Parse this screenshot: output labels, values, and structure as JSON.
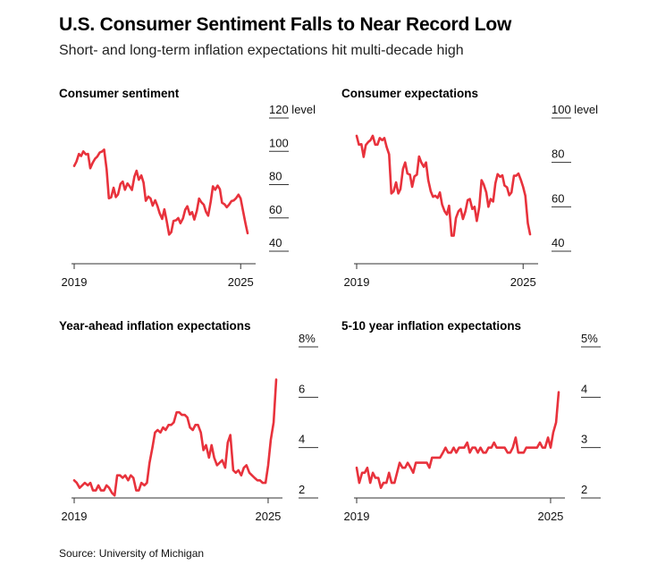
{
  "header": {
    "title": "U.S. Consumer Sentiment Falls to Near Record Low",
    "subtitle": "Short- and long-term inflation expectations hit multi-decade high"
  },
  "footer": {
    "source": "Source: University of Michigan"
  },
  "colors": {
    "line": "#e8323c",
    "axis": "#333333",
    "text": "#111111"
  },
  "chart_data": [
    {
      "type": "line",
      "title": "Consumer sentiment",
      "xlim": [
        2019.0,
        2025.25
      ],
      "ylim": [
        40,
        120
      ],
      "x_ticks": [
        {
          "v": 2019,
          "label": "2019"
        },
        {
          "v": 2025,
          "label": "2025"
        }
      ],
      "y_ticks": [
        {
          "v": 120,
          "label": "120 level"
        },
        {
          "v": 100,
          "label": "100"
        },
        {
          "v": 80,
          "label": "80"
        },
        {
          "v": 60,
          "label": "60"
        },
        {
          "v": 40,
          "label": "40"
        }
      ],
      "series": [
        {
          "x": [
            2019.0,
            2019.08,
            2019.17,
            2019.25,
            2019.33,
            2019.42,
            2019.5,
            2019.58,
            2019.67,
            2019.75,
            2019.83,
            2019.92,
            2020.0,
            2020.08,
            2020.17,
            2020.25,
            2020.33,
            2020.42,
            2020.5,
            2020.58,
            2020.67,
            2020.75,
            2020.83,
            2020.92,
            2021.0,
            2021.08,
            2021.17,
            2021.25,
            2021.33,
            2021.42,
            2021.5,
            2021.58,
            2021.67,
            2021.75,
            2021.83,
            2021.92,
            2022.0,
            2022.08,
            2022.17,
            2022.25,
            2022.33,
            2022.42,
            2022.5,
            2022.58,
            2022.67,
            2022.75,
            2022.83,
            2022.92,
            2023.0,
            2023.08,
            2023.17,
            2023.25,
            2023.33,
            2023.42,
            2023.5,
            2023.58,
            2023.67,
            2023.75,
            2023.83,
            2023.92,
            2024.0,
            2024.08,
            2024.17,
            2024.25,
            2024.33,
            2024.42,
            2024.5,
            2024.58,
            2024.67,
            2024.75,
            2024.83,
            2024.92,
            2025.0
          ],
          "y": [
            91.2,
            93.8,
            98.4,
            97.2,
            100.0,
            98.2,
            98.4,
            89.8,
            93.2,
            95.5,
            96.8,
            99.3,
            99.8,
            101.0,
            89.1,
            71.8,
            72.3,
            78.1,
            72.5,
            74.1,
            80.4,
            81.8,
            76.9,
            80.7,
            79.0,
            76.8,
            84.9,
            88.3,
            82.9,
            85.5,
            81.2,
            70.3,
            72.8,
            71.7,
            67.4,
            70.6,
            67.2,
            62.8,
            59.4,
            65.2,
            58.4,
            50.0,
            51.5,
            58.2,
            58.6,
            59.9,
            56.8,
            59.7,
            64.9,
            67.0,
            62.0,
            63.5,
            59.0,
            64.2,
            71.6,
            69.4,
            67.9,
            63.8,
            61.3,
            69.7,
            79.0,
            76.9,
            79.4,
            77.2,
            69.1,
            68.2,
            66.4,
            67.9,
            70.1,
            70.5,
            71.8,
            74.0,
            71.7
          ],
          "x2": [
            2024.92,
            2025.0,
            2025.08,
            2025.17,
            2025.25
          ],
          "y2": [
            74.0,
            71.7,
            64.7,
            57.0,
            50.8
          ]
        }
      ]
    },
    {
      "type": "line",
      "title": "Consumer expectations",
      "xlim": [
        2019.0,
        2025.25
      ],
      "ylim": [
        40,
        100
      ],
      "x_ticks": [
        {
          "v": 2019,
          "label": "2019"
        },
        {
          "v": 2025,
          "label": "2025"
        }
      ],
      "y_ticks": [
        {
          "v": 100,
          "label": "100 level"
        },
        {
          "v": 80,
          "label": "80"
        },
        {
          "v": 60,
          "label": "60"
        },
        {
          "v": 40,
          "label": "40"
        }
      ],
      "series": [
        {
          "x": [
            2019.0,
            2019.08,
            2019.17,
            2019.25,
            2019.33,
            2019.42,
            2019.5,
            2019.58,
            2019.67,
            2019.75,
            2019.83,
            2019.92,
            2020.0,
            2020.08,
            2020.17,
            2020.25,
            2020.33,
            2020.42,
            2020.5,
            2020.58,
            2020.67,
            2020.75,
            2020.83,
            2020.92,
            2021.0,
            2021.08,
            2021.17,
            2021.25,
            2021.33,
            2021.42,
            2021.5,
            2021.58,
            2021.67,
            2021.75,
            2021.83,
            2021.92,
            2022.0,
            2022.08,
            2022.17,
            2022.25,
            2022.33,
            2022.42,
            2022.5,
            2022.58,
            2022.67,
            2022.75,
            2022.83,
            2022.92,
            2023.0,
            2023.08,
            2023.17,
            2023.25,
            2023.33,
            2023.42,
            2023.5,
            2023.58,
            2023.67,
            2023.75,
            2023.83,
            2023.92,
            2024.0,
            2024.08,
            2024.17,
            2024.25,
            2024.33,
            2024.42,
            2024.5,
            2024.58,
            2024.67,
            2024.75,
            2024.83,
            2024.92,
            2025.0,
            2025.08
          ],
          "y": [
            92.0,
            88.0,
            88.2,
            82.5,
            87.8,
            89.2,
            90.0,
            92.0,
            88.0,
            88.0,
            91.0,
            90.0,
            91.0,
            87.0,
            83.6,
            66.0,
            67.0,
            71.0,
            66.0,
            68.0,
            77.0,
            80.0,
            75.0,
            74.5,
            69.0,
            73.7,
            74.5,
            82.7,
            80.0,
            78.0,
            80.0,
            72.0,
            67.0,
            64.5,
            65.0,
            64.0,
            66.5,
            61.0,
            58.0,
            56.5,
            60.5,
            47.0,
            47.0,
            55.0,
            58.0,
            59.0,
            54.5,
            58.0,
            63.0,
            63.5,
            59.0,
            60.0,
            53.6,
            60.0,
            72.0,
            70.0,
            66.5,
            60.0,
            63.5,
            62.4,
            70.6,
            74.7,
            73.5,
            74.2,
            69.6,
            68.8,
            65.2,
            66.5,
            74.0,
            74.0,
            75.0,
            72.0,
            69.0,
            65.0
          ],
          "x2": [
            2025.08,
            2025.17,
            2025.25
          ],
          "y2": [
            65.0,
            52.6,
            47.6
          ]
        }
      ]
    },
    {
      "type": "line",
      "title": "Year-ahead inflation expectations",
      "xlim": [
        2019.0,
        2025.25
      ],
      "ylim": [
        1.8,
        8
      ],
      "x_ticks": [
        {
          "v": 2019,
          "label": "2019"
        },
        {
          "v": 2025,
          "label": "2025"
        }
      ],
      "y_ticks": [
        {
          "v": 8,
          "label": "8%"
        },
        {
          "v": 6,
          "label": "6"
        },
        {
          "v": 4,
          "label": "4"
        },
        {
          "v": 2,
          "label": "2"
        }
      ],
      "series": [
        {
          "x": [
            2019.0,
            2019.08,
            2019.17,
            2019.25,
            2019.33,
            2019.42,
            2019.5,
            2019.58,
            2019.67,
            2019.75,
            2019.83,
            2019.92,
            2020.0,
            2020.08,
            2020.17,
            2020.25,
            2020.33,
            2020.42,
            2020.5,
            2020.58,
            2020.67,
            2020.75,
            2020.83,
            2020.92,
            2021.0,
            2021.08,
            2021.17,
            2021.25,
            2021.33,
            2021.42,
            2021.5,
            2021.58,
            2021.67,
            2021.75,
            2021.83,
            2021.92,
            2022.0,
            2022.08,
            2022.17,
            2022.25,
            2022.33,
            2022.42,
            2022.5,
            2022.58,
            2022.67,
            2022.75,
            2022.83,
            2022.92,
            2023.0,
            2023.08,
            2023.17,
            2023.25,
            2023.33,
            2023.42,
            2023.5,
            2023.58,
            2023.67,
            2023.75,
            2023.83,
            2023.92,
            2024.0,
            2024.08,
            2024.17,
            2024.25,
            2024.33,
            2024.42,
            2024.5,
            2024.58,
            2024.67,
            2024.75,
            2024.83,
            2024.92,
            2025.0,
            2025.08,
            2025.17,
            2025.25
          ],
          "y": [
            2.7,
            2.6,
            2.4,
            2.5,
            2.6,
            2.5,
            2.6,
            2.3,
            2.3,
            2.5,
            2.3,
            2.3,
            2.5,
            2.4,
            2.2,
            2.1,
            2.9,
            2.9,
            2.8,
            2.9,
            2.7,
            2.9,
            2.8,
            2.3,
            2.3,
            2.6,
            2.5,
            2.6,
            3.4,
            4.0,
            4.6,
            4.7,
            4.6,
            4.8,
            4.7,
            4.9,
            4.9,
            5.0,
            5.4,
            5.4,
            5.3,
            5.3,
            5.2,
            4.8,
            4.7,
            4.9,
            4.9,
            4.6,
            3.9,
            4.1,
            3.6,
            4.1,
            3.6,
            3.3,
            3.4,
            3.5,
            3.2,
            4.2,
            4.5,
            3.1,
            3.0,
            3.1,
            2.9,
            3.2,
            3.3,
            3.0,
            2.9,
            2.8,
            2.7,
            2.7,
            2.6,
            2.6,
            3.3,
            4.3,
            5.0,
            6.7
          ]
        }
      ]
    },
    {
      "type": "line",
      "title": "5-10 year inflation expectations",
      "xlim": [
        2019.0,
        2025.25
      ],
      "ylim": [
        1.9,
        5
      ],
      "x_ticks": [
        {
          "v": 2019,
          "label": "2019"
        },
        {
          "v": 2025,
          "label": "2025"
        }
      ],
      "y_ticks": [
        {
          "v": 5,
          "label": "5%"
        },
        {
          "v": 4,
          "label": "4"
        },
        {
          "v": 3,
          "label": "3"
        },
        {
          "v": 2,
          "label": "2"
        }
      ],
      "series": [
        {
          "x": [
            2019.0,
            2019.08,
            2019.17,
            2019.25,
            2019.33,
            2019.42,
            2019.5,
            2019.58,
            2019.67,
            2019.75,
            2019.83,
            2019.92,
            2020.0,
            2020.08,
            2020.17,
            2020.25,
            2020.33,
            2020.42,
            2020.5,
            2020.58,
            2020.67,
            2020.75,
            2020.83,
            2020.92,
            2021.0,
            2021.08,
            2021.17,
            2021.25,
            2021.33,
            2021.42,
            2021.5,
            2021.58,
            2021.67,
            2021.75,
            2021.83,
            2021.92,
            2022.0,
            2022.08,
            2022.17,
            2022.25,
            2022.33,
            2022.42,
            2022.5,
            2022.58,
            2022.67,
            2022.75,
            2022.83,
            2022.92,
            2023.0,
            2023.08,
            2023.17,
            2023.25,
            2023.33,
            2023.42,
            2023.5,
            2023.58,
            2023.67,
            2023.75,
            2023.83,
            2023.92,
            2024.0,
            2024.08,
            2024.17,
            2024.25,
            2024.33,
            2024.42,
            2024.5,
            2024.58,
            2024.67,
            2024.75,
            2024.83,
            2024.92,
            2025.0,
            2025.08,
            2025.17,
            2025.25
          ],
          "y": [
            2.6,
            2.3,
            2.5,
            2.5,
            2.6,
            2.3,
            2.5,
            2.4,
            2.4,
            2.2,
            2.3,
            2.3,
            2.5,
            2.3,
            2.3,
            2.5,
            2.7,
            2.6,
            2.6,
            2.7,
            2.6,
            2.5,
            2.7,
            2.7,
            2.7,
            2.7,
            2.7,
            2.6,
            2.8,
            2.8,
            2.8,
            2.8,
            2.9,
            3.0,
            2.9,
            2.9,
            3.0,
            2.9,
            3.0,
            3.0,
            3.0,
            3.1,
            2.9,
            3.0,
            3.0,
            2.9,
            3.0,
            2.9,
            2.9,
            3.0,
            3.0,
            3.1,
            3.0,
            3.0,
            3.0,
            3.0,
            2.9,
            2.9,
            3.0,
            3.2,
            2.9,
            2.9,
            2.9,
            3.0,
            3.0,
            3.0,
            3.0,
            3.0,
            3.1,
            3.0,
            3.0,
            3.2,
            3.0,
            3.3,
            3.5,
            4.1
          ]
        }
      ]
    }
  ]
}
